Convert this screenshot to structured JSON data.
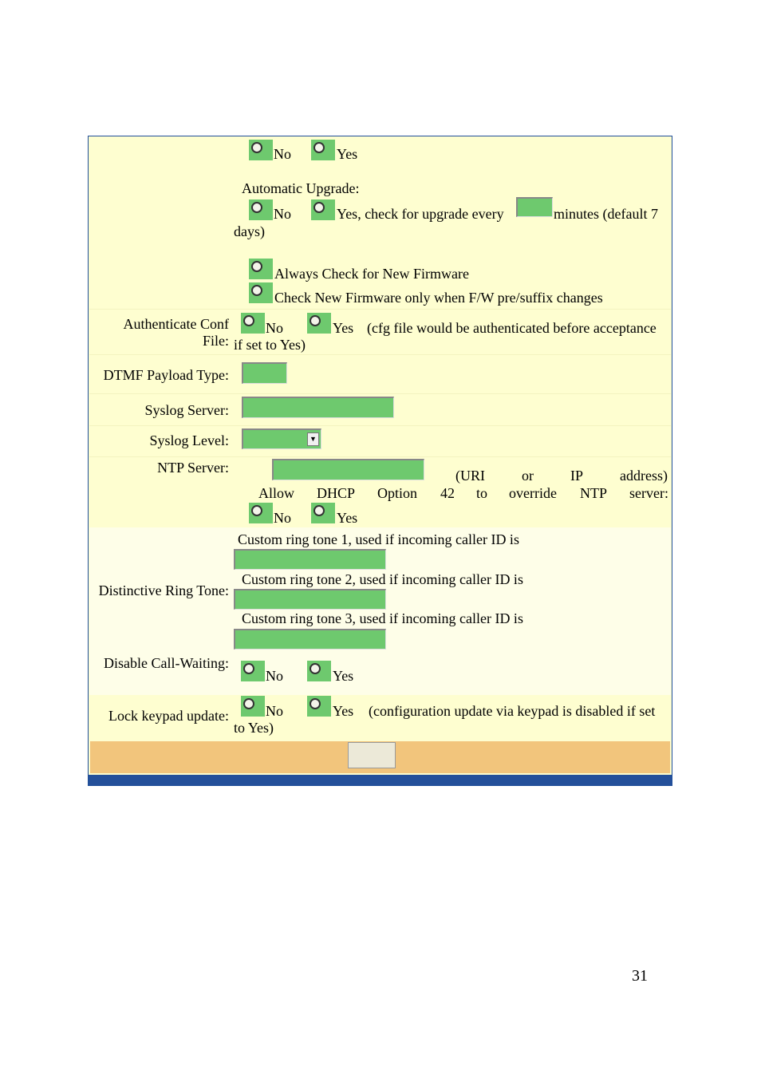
{
  "firmware_check": {
    "opt_no": "No",
    "opt_yes": "Yes"
  },
  "auto_upgrade": {
    "label": "Automatic Upgrade:",
    "opt_no": "No",
    "opt_yes": "Yes, check for upgrade every",
    "suffix": "minutes (default 7",
    "suffix_wrap": "days)",
    "opt_always": "Always Check for New Firmware",
    "opt_suffix_changes": "Check New Firmware only when F/W pre/suffix changes"
  },
  "auth_conf": {
    "label_line1": "Authenticate Conf",
    "label_line2": "File:",
    "opt_no": "No",
    "opt_yes": "Yes",
    "note": "(cfg file would be authenticated before acceptance",
    "note_wrap": "if set to Yes)"
  },
  "dtmf": {
    "label": "DTMF Payload Type:"
  },
  "syslog_server": {
    "label": "Syslog Server:"
  },
  "syslog_level": {
    "label": "Syslog Level:"
  },
  "ntp": {
    "label": "NTP Server:",
    "note_words": [
      "(URI",
      "or",
      "IP",
      "address)"
    ],
    "dhcp_words": [
      "Allow",
      "DHCP",
      "Option",
      "42",
      "to",
      "override",
      "NTP",
      "server:"
    ],
    "opt_no": "No",
    "opt_yes": "Yes"
  },
  "ring_tone": {
    "label": "Distinctive Ring Tone:",
    "tone1": "Custom ring tone 1, used if incoming caller ID is",
    "tone2": "Custom ring tone 2, used if incoming caller ID is",
    "tone3": "Custom ring tone 3, used if incoming caller ID is"
  },
  "call_waiting": {
    "label": "Disable Call-Waiting:",
    "opt_no": "No",
    "opt_yes": "Yes"
  },
  "lock_keypad": {
    "label": "Lock keypad update:",
    "opt_no": "No",
    "opt_yes": "Yes",
    "note": "(configuration update via keypad is disabled if set",
    "note_wrap": "to Yes)"
  },
  "page_number": "31",
  "colors": {
    "panel_bg": "#fefed0",
    "input_green": "#6ec96e",
    "footer_orange": "#f2c57c",
    "bottom_bar_blue": "#24509a"
  }
}
